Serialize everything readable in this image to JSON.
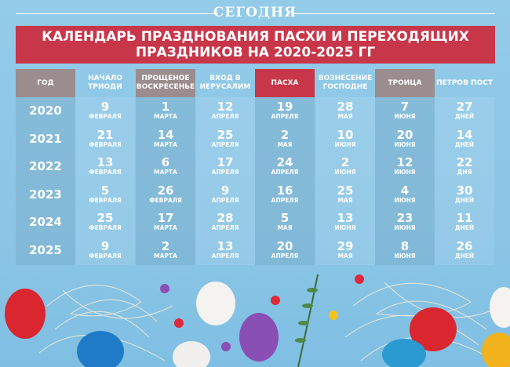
{
  "brand": "СЕГОДНЯ",
  "title_line1": "КАЛЕНДАРЬ ПРАЗДНОВАНИЯ ПАСХИ И ПЕРЕХОДЯЩИХ",
  "title_line2": "ПРАЗДНИКОВ НА 2020-2025 ГГ",
  "colors": {
    "title_bg": "#c8364a",
    "header_gray": "#9b8c8e",
    "header_red": "#c8364a",
    "background": "#8fc8e6"
  },
  "columns": [
    {
      "header": "ГОД",
      "style": "gray",
      "cells": [
        [
          "2020",
          ""
        ],
        [
          "2021",
          ""
        ],
        [
          "2022",
          ""
        ],
        [
          "2023",
          ""
        ],
        [
          "2024",
          ""
        ],
        [
          "2025",
          ""
        ]
      ]
    },
    {
      "header": "НАЧАЛО ТРИОДИ",
      "style": "none",
      "cells": [
        [
          "9",
          "ФЕВРАЛЯ"
        ],
        [
          "21",
          "ФЕВРАЛЯ"
        ],
        [
          "13",
          "ФЕВРАЛЯ"
        ],
        [
          "5",
          "ФЕВРАЛЯ"
        ],
        [
          "25",
          "ФЕВРАЛЯ"
        ],
        [
          "9",
          "ФЕВРАЛЯ"
        ]
      ]
    },
    {
      "header": "ПРОЩЕНОЕ ВОСКРЕСЕНЬЕ",
      "style": "gray",
      "cells": [
        [
          "1",
          "МАРТА"
        ],
        [
          "14",
          "МАРТА"
        ],
        [
          "6",
          "МАРТА"
        ],
        [
          "26",
          "ФЕВРАЛЯ"
        ],
        [
          "17",
          "МАРТА"
        ],
        [
          "2",
          "МАРТА"
        ]
      ]
    },
    {
      "header": "ВХОД В ИЕРУСАЛИМ",
      "style": "none",
      "cells": [
        [
          "12",
          "АПРЕЛЯ"
        ],
        [
          "25",
          "АПРЕЛЯ"
        ],
        [
          "17",
          "АПРЕЛЯ"
        ],
        [
          "9",
          "АПРЕЛЯ"
        ],
        [
          "28",
          "АПРЕЛЯ"
        ],
        [
          "13",
          "АПРЕЛЯ"
        ]
      ]
    },
    {
      "header": "ПАСХА",
      "style": "red",
      "cells": [
        [
          "19",
          "АПРЕЛЯ"
        ],
        [
          "2",
          "МАЯ"
        ],
        [
          "24",
          "АПРЕЛЯ"
        ],
        [
          "16",
          "АПРЕЛЯ"
        ],
        [
          "5",
          "МАЯ"
        ],
        [
          "20",
          "АПРЕЛЯ"
        ]
      ]
    },
    {
      "header": "ВОЗНЕСЕНИЕ ГОСПОДНЕ",
      "style": "none",
      "cells": [
        [
          "28",
          "МАЯ"
        ],
        [
          "10",
          "ИЮНЯ"
        ],
        [
          "2",
          "ИЮНЯ"
        ],
        [
          "25",
          "МАЯ"
        ],
        [
          "13",
          "ИЮНЯ"
        ],
        [
          "29",
          "МАЯ"
        ]
      ]
    },
    {
      "header": "ТРОИЦА",
      "style": "gray",
      "cells": [
        [
          "7",
          "ИЮНЯ"
        ],
        [
          "20",
          "ИЮНЯ"
        ],
        [
          "12",
          "ИЮНЯ"
        ],
        [
          "4",
          "ИЮНЯ"
        ],
        [
          "23",
          "ИЮНЯ"
        ],
        [
          "8",
          "ИЮНЯ"
        ]
      ]
    },
    {
      "header": "ПЕТРОВ ПОСТ",
      "style": "none",
      "cells": [
        [
          "27",
          "ДНЕЙ"
        ],
        [
          "14",
          "ДНЕЙ"
        ],
        [
          "22",
          "ДНЯ"
        ],
        [
          "30",
          "ДНЕЙ"
        ],
        [
          "11",
          "ДНЕЙ"
        ],
        [
          "26",
          "ДНЕЙ"
        ]
      ]
    }
  ]
}
